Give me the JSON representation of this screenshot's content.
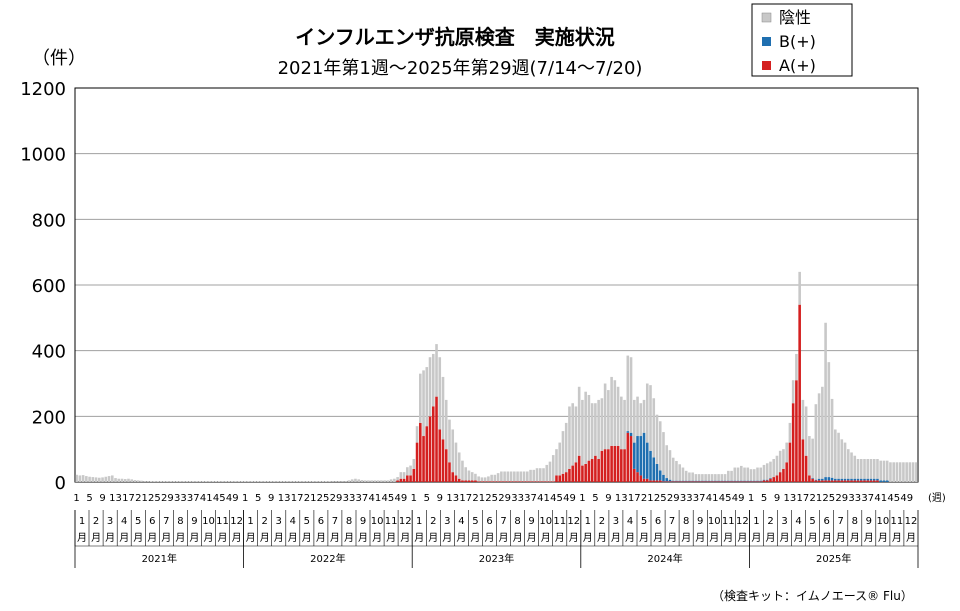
{
  "chart_data": {
    "type": "bar",
    "stacked": true,
    "title": "インフルエンザ抗原検査　実施状況",
    "subtitle": "2021年第1週～2025年第29週(7/14～7/20)",
    "ylabel": "（件）",
    "xunit": "(週)",
    "ylim": [
      0,
      1200
    ],
    "yticks": [
      "0",
      "200",
      "400",
      "600",
      "800",
      "1000",
      "1200"
    ],
    "grid": true,
    "legend_position": "top-right",
    "legend": [
      {
        "name": "陰性",
        "color": "#c8c8c8"
      },
      {
        "name": "B(+)",
        "color": "#1f6fb0"
      },
      {
        "name": "A(+)",
        "color": "#d42020"
      }
    ],
    "year_labels": [
      "2021年",
      "2022年",
      "2023年",
      "2024年",
      "2025年"
    ],
    "week_tick_labels": [
      "1",
      "5",
      "9",
      "13",
      "17",
      "21",
      "25",
      "29",
      "33",
      "37",
      "41",
      "45",
      "49"
    ],
    "month_labels": [
      "1月",
      "2月",
      "3月",
      "4月",
      "5月",
      "6月",
      "7月",
      "8月",
      "9月",
      "10月",
      "11月",
      "12月"
    ],
    "series": [
      {
        "name": "A(+)",
        "values": [
          0,
          0,
          0,
          0,
          0,
          0,
          0,
          0,
          0,
          0,
          0,
          0,
          0,
          0,
          0,
          0,
          0,
          0,
          0,
          0,
          0,
          0,
          0,
          0,
          0,
          0,
          0,
          0,
          0,
          0,
          0,
          0,
          0,
          0,
          0,
          0,
          0,
          0,
          0,
          0,
          0,
          0,
          0,
          0,
          0,
          0,
          0,
          0,
          0,
          0,
          0,
          0,
          0,
          0,
          0,
          0,
          0,
          0,
          0,
          0,
          0,
          0,
          0,
          0,
          0,
          0,
          0,
          0,
          0,
          0,
          0,
          0,
          0,
          0,
          0,
          0,
          0,
          0,
          0,
          0,
          0,
          0,
          0,
          0,
          0,
          0,
          0,
          0,
          0,
          0,
          0,
          0,
          0,
          0,
          0,
          0,
          0,
          0,
          0,
          5,
          10,
          10,
          20,
          20,
          40,
          120,
          180,
          140,
          170,
          200,
          230,
          260,
          160,
          130,
          100,
          60,
          30,
          20,
          10,
          5,
          5,
          5,
          5,
          5,
          2,
          2,
          2,
          2,
          2,
          2,
          2,
          2,
          2,
          2,
          2,
          2,
          2,
          2,
          2,
          2,
          2,
          2,
          2,
          2,
          2,
          2,
          2,
          2,
          20,
          20,
          25,
          30,
          40,
          50,
          60,
          80,
          50,
          55,
          65,
          70,
          80,
          70,
          95,
          100,
          100,
          110,
          110,
          110,
          100,
          100,
          150,
          140,
          40,
          30,
          20,
          10,
          10,
          5,
          5,
          5,
          5,
          2,
          2,
          2,
          2,
          2,
          2,
          2,
          2,
          2,
          2,
          2,
          2,
          2,
          2,
          2,
          2,
          2,
          2,
          2,
          2,
          2,
          2,
          2,
          2,
          2,
          2,
          2,
          2,
          2,
          2,
          2,
          5,
          5,
          10,
          15,
          20,
          30,
          40,
          60,
          120,
          240,
          310,
          540,
          130,
          80,
          20,
          10,
          5,
          5,
          5,
          5,
          5,
          5,
          5,
          5,
          5,
          5,
          5,
          5,
          5,
          5,
          5,
          5,
          5,
          5,
          5,
          5,
          0,
          0,
          0,
          0,
          0,
          0,
          0,
          0,
          0,
          0,
          0,
          0,
          0,
          0,
          0,
          0,
          0,
          0,
          0,
          0,
          0,
          0,
          0
        ]
      },
      {
        "name": "B(+)",
        "values": [
          0,
          0,
          0,
          0,
          0,
          0,
          0,
          0,
          0,
          0,
          0,
          0,
          0,
          0,
          0,
          0,
          0,
          0,
          0,
          0,
          0,
          0,
          0,
          0,
          0,
          0,
          0,
          0,
          0,
          0,
          0,
          0,
          0,
          0,
          0,
          0,
          0,
          0,
          0,
          0,
          0,
          0,
          0,
          0,
          0,
          0,
          0,
          0,
          0,
          0,
          0,
          0,
          0,
          0,
          0,
          0,
          0,
          0,
          0,
          0,
          0,
          0,
          0,
          0,
          0,
          0,
          0,
          0,
          0,
          0,
          0,
          0,
          0,
          0,
          0,
          0,
          0,
          0,
          0,
          0,
          0,
          0,
          0,
          0,
          0,
          0,
          0,
          0,
          0,
          0,
          0,
          0,
          0,
          0,
          0,
          0,
          0,
          0,
          0,
          0,
          0,
          0,
          0,
          0,
          0,
          0,
          0,
          0,
          0,
          0,
          0,
          0,
          0,
          0,
          0,
          0,
          0,
          0,
          0,
          0,
          0,
          0,
          0,
          0,
          0,
          0,
          0,
          0,
          0,
          0,
          0,
          0,
          0,
          0,
          0,
          0,
          0,
          0,
          0,
          0,
          0,
          0,
          0,
          0,
          0,
          0,
          0,
          0,
          0,
          0,
          0,
          0,
          0,
          0,
          0,
          0,
          0,
          0,
          0,
          0,
          0,
          0,
          0,
          0,
          0,
          0,
          0,
          0,
          0,
          0,
          5,
          10,
          80,
          110,
          120,
          140,
          110,
          90,
          70,
          50,
          30,
          20,
          10,
          5,
          2,
          2,
          2,
          2,
          2,
          2,
          2,
          2,
          2,
          2,
          2,
          2,
          2,
          2,
          2,
          2,
          2,
          2,
          2,
          2,
          2,
          2,
          2,
          2,
          2,
          2,
          2,
          2,
          2,
          2,
          2,
          0,
          0,
          0,
          0,
          0,
          0,
          0,
          0,
          0,
          0,
          0,
          0,
          2,
          2,
          5,
          5,
          10,
          10,
          8,
          5,
          5,
          5,
          5,
          5,
          5,
          5,
          5,
          5,
          5,
          5,
          5,
          5,
          5,
          5,
          5,
          5,
          0,
          0,
          0,
          0,
          0,
          0,
          0,
          0,
          0,
          0,
          0,
          0,
          0,
          0,
          0,
          0,
          0,
          0,
          0,
          0,
          0,
          0,
          0
        ]
      },
      {
        "name": "陰性",
        "values": [
          22,
          20,
          21,
          18,
          16,
          15,
          14,
          13,
          14,
          16,
          18,
          20,
          12,
          10,
          10,
          9,
          10,
          8,
          6,
          5,
          4,
          3,
          3,
          2,
          2,
          2,
          2,
          2,
          2,
          2,
          2,
          2,
          2,
          2,
          2,
          2,
          2,
          2,
          2,
          2,
          2,
          2,
          2,
          2,
          2,
          2,
          2,
          2,
          2,
          2,
          2,
          2,
          2,
          2,
          2,
          2,
          2,
          2,
          2,
          2,
          2,
          2,
          2,
          2,
          2,
          2,
          2,
          2,
          2,
          2,
          2,
          2,
          2,
          2,
          2,
          2,
          2,
          2,
          2,
          3,
          3,
          3,
          3,
          3,
          5,
          8,
          10,
          8,
          6,
          5,
          5,
          5,
          5,
          5,
          5,
          5,
          5,
          8,
          10,
          10,
          20,
          20,
          25,
          30,
          30,
          50,
          150,
          200,
          180,
          180,
          160,
          160,
          220,
          190,
          150,
          130,
          130,
          100,
          80,
          60,
          40,
          30,
          25,
          20,
          15,
          12,
          12,
          15,
          20,
          20,
          25,
          30,
          30,
          30,
          30,
          30,
          30,
          30,
          30,
          30,
          35,
          35,
          40,
          40,
          40,
          50,
          60,
          80,
          80,
          100,
          130,
          150,
          190,
          190,
          170,
          210,
          200,
          220,
          200,
          170,
          160,
          180,
          160,
          200,
          180,
          210,
          200,
          180,
          160,
          150,
          230,
          230,
          130,
          120,
          100,
          100,
          180,
          200,
          180,
          150,
          150,
          130,
          100,
          90,
          70,
          60,
          50,
          40,
          30,
          25,
          25,
          20,
          20,
          20,
          20,
          20,
          20,
          20,
          20,
          20,
          20,
          30,
          30,
          40,
          40,
          45,
          40,
          40,
          35,
          35,
          40,
          40,
          45,
          50,
          50,
          55,
          60,
          65,
          60,
          60,
          60,
          70,
          80,
          100,
          120,
          150,
          120,
          120,
          230,
          260,
          280,
          470,
          350,
          240,
          150,
          140,
          120,
          110,
          90,
          80,
          70,
          60,
          60,
          60,
          60,
          60,
          60,
          60,
          60,
          60,
          60,
          60,
          60,
          60,
          60,
          60,
          60,
          60,
          60,
          60,
          0,
          0,
          0,
          0,
          0,
          0,
          0,
          0,
          0,
          0,
          0,
          0,
          0,
          0,
          0,
          0,
          0,
          0,
          0,
          0,
          0,
          0,
          0
        ]
      }
    ]
  },
  "footer_note": "（検査キット：イムノエース® Flu）"
}
